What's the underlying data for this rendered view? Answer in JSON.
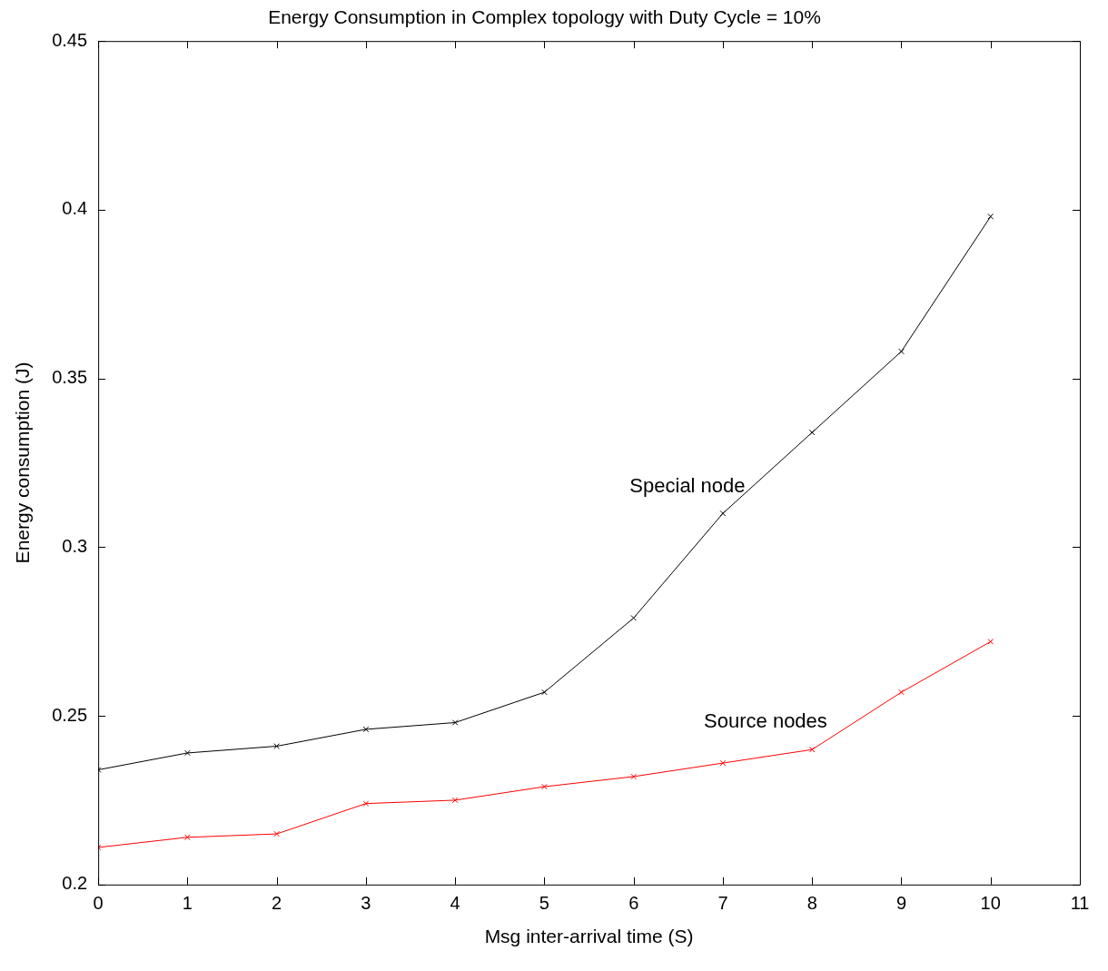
{
  "chart_data": {
    "type": "line",
    "title": "Energy Consumption in Complex topology with Duty Cycle = 10%",
    "xlabel": "Msg inter-arrival time (S)",
    "ylabel": "Energy consumption (J)",
    "x": [
      0,
      1,
      2,
      3,
      4,
      5,
      6,
      7,
      8,
      9,
      10
    ],
    "series": [
      {
        "name": "Special node",
        "color": "#000000",
        "values": [
          0.234,
          0.239,
          0.241,
          0.246,
          0.248,
          0.257,
          0.279,
          0.31,
          0.334,
          0.358,
          0.398
        ]
      },
      {
        "name": "Source nodes",
        "color": "#ff0000",
        "values": [
          0.211,
          0.214,
          0.215,
          0.224,
          0.225,
          0.229,
          0.232,
          0.236,
          0.24,
          0.257,
          0.272
        ]
      }
    ],
    "xlim": [
      0,
      11
    ],
    "xticks": [
      0,
      1,
      2,
      3,
      4,
      5,
      6,
      7,
      8,
      9,
      10,
      11
    ],
    "ylim": [
      0.2,
      0.45
    ],
    "yticks": [
      0.2,
      0.25,
      0.3,
      0.35,
      0.4,
      0.45
    ],
    "marker": "cross",
    "line_style": "solid",
    "grid": false,
    "legend": false
  }
}
